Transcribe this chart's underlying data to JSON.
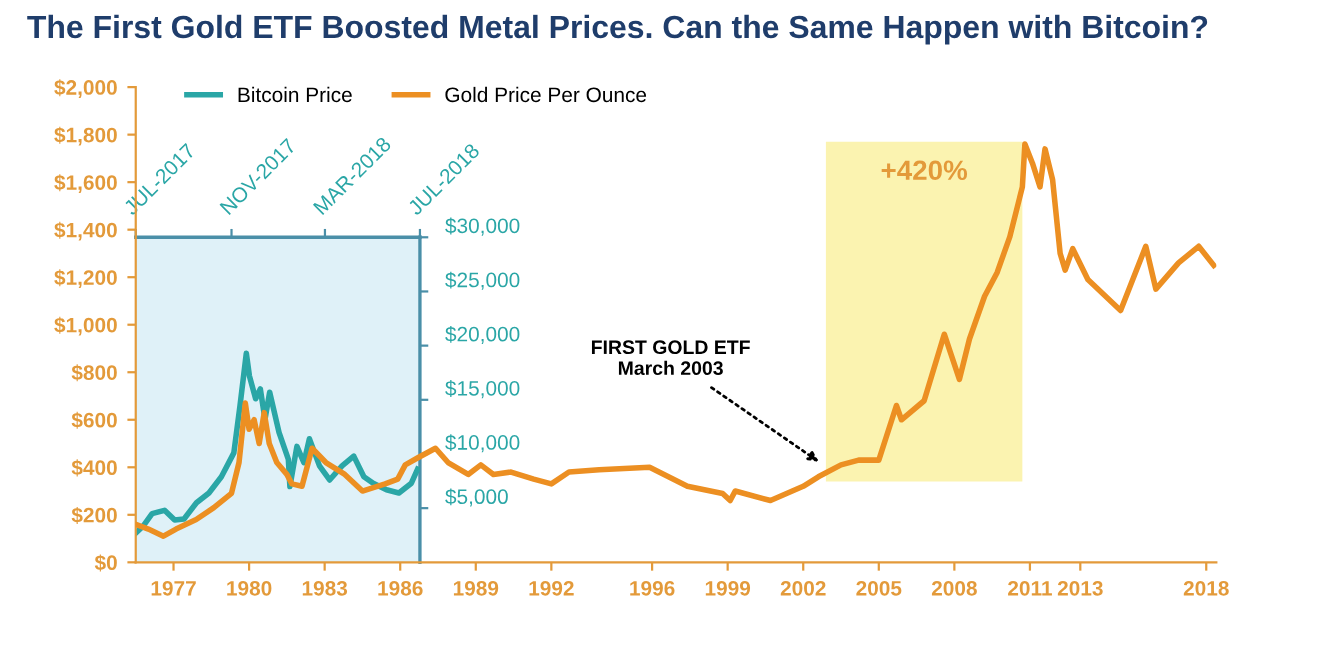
{
  "chart_data": [
    {
      "type": "line",
      "title": "The First Gold ETF Boosted Metal Prices. Can the Same Happen with Bitcoin?",
      "xlim": [
        1975.5,
        2018.4
      ],
      "xticks": [
        1977,
        1980,
        1983,
        1986,
        1989,
        1992,
        1996,
        1999,
        2002,
        2005,
        2008,
        2011,
        2013,
        2018
      ],
      "ylim": [
        0,
        2000
      ],
      "yticks": [
        {
          "value": 0,
          "label": "$0"
        },
        {
          "value": 200,
          "label": "$200"
        },
        {
          "value": 400,
          "label": "$400"
        },
        {
          "value": 600,
          "label": "$600"
        },
        {
          "value": 800,
          "label": "$800"
        },
        {
          "value": 1000,
          "label": "$1,000"
        },
        {
          "value": 1200,
          "label": "$1,200"
        },
        {
          "value": 1400,
          "label": "$1,400"
        },
        {
          "value": 1600,
          "label": "$1,600"
        },
        {
          "value": 1800,
          "label": "$1,800"
        },
        {
          "value": 2000,
          "label": "$2,000"
        }
      ],
      "series": [
        {
          "name": "Gold Price Per Ounce",
          "color": "#ec8f22",
          "x": [
            1975.5,
            1976.0,
            1976.6,
            1977.1,
            1977.9,
            1978.6,
            1979.3,
            1979.6,
            1979.85,
            1980.0,
            1980.2,
            1980.4,
            1980.6,
            1980.8,
            1981.1,
            1981.5,
            1981.7,
            1982.1,
            1982.5,
            1983.05,
            1983.8,
            1984.5,
            1985.4,
            1985.9,
            1986.2,
            1986.7,
            1987.4,
            1987.9,
            1988.7,
            1989.2,
            1989.7,
            1990.4,
            1991.3,
            1992.0,
            1992.7,
            1993.9,
            1995.9,
            1997.4,
            1998.8,
            1999.1,
            1999.3,
            2000.7,
            2002.0,
            2002.6,
            2003.5,
            2004.2,
            2005.0,
            2005.7,
            2005.9,
            2006.8,
            2007.6,
            2008.2,
            2008.6,
            2009.2,
            2009.7,
            2010.2,
            2010.7,
            2010.8,
            2011.1,
            2011.4,
            2011.6,
            2011.9,
            2012.2,
            2012.4,
            2012.7,
            2013.3,
            2014.6,
            2015.6,
            2016.0,
            2016.9,
            2017.7,
            2018.3
          ],
          "values": [
            160,
            140,
            110,
            140,
            180,
            230,
            290,
            420,
            670,
            560,
            600,
            500,
            630,
            500,
            420,
            370,
            330,
            320,
            480,
            420,
            370,
            300,
            330,
            350,
            410,
            440,
            480,
            420,
            370,
            410,
            370,
            380,
            350,
            330,
            380,
            390,
            400,
            320,
            290,
            260,
            300,
            260,
            320,
            360,
            410,
            430,
            430,
            660,
            600,
            680,
            960,
            770,
            940,
            1120,
            1220,
            1370,
            1580,
            1760,
            1680,
            1580,
            1740,
            1610,
            1300,
            1230,
            1320,
            1190,
            1060,
            1330,
            1150,
            1260,
            1330,
            1250
          ]
        }
      ],
      "bands": [
        {
          "axis": "x",
          "from": 2002.9,
          "to": 2010.7,
          "label": "+420%",
          "color": "#fbf3b0"
        }
      ],
      "annotations": [
        {
          "text": "FIRST GOLD ETF\nMarch 2003",
          "x": 2002.8,
          "y": 410
        }
      ],
      "legend": "top left"
    },
    {
      "type": "line",
      "xlim": [
        "2017-07-01",
        "2018-07-01"
      ],
      "xticks": [
        {
          "value": "2017-07-01",
          "label": "JUL-2017"
        },
        {
          "value": "2017-11-01",
          "label": "NOV-2017"
        },
        {
          "value": "2018-03-01",
          "label": "MAR-2018"
        },
        {
          "value": "2018-07-01",
          "label": "JUL-2018"
        }
      ],
      "ylim": [
        0,
        30000
      ],
      "yticks": [
        {
          "value": 5000,
          "label": "$5,000"
        },
        {
          "value": 10000,
          "label": "$10,000"
        },
        {
          "value": 15000,
          "label": "$15,000"
        },
        {
          "value": 20000,
          "label": "$20,000"
        },
        {
          "value": 25000,
          "label": "$25,000"
        },
        {
          "value": 30000,
          "label": "$30,000"
        }
      ],
      "series": [
        {
          "name": "Bitcoin Price",
          "color": "#2aa6a6",
          "x": [
            "2017-07-01",
            "2017-07-10",
            "2017-07-22",
            "2017-08-07",
            "2017-08-20",
            "2017-09-01",
            "2017-09-17",
            "2017-10-03",
            "2017-10-19",
            "2017-11-04",
            "2017-11-12",
            "2017-11-20",
            "2017-11-24",
            "2017-12-02",
            "2017-12-08",
            "2017-12-14",
            "2017-12-20",
            "2018-01-01",
            "2018-01-13",
            "2018-01-15",
            "2018-01-24",
            "2018-02-02",
            "2018-02-09",
            "2018-02-22",
            "2018-03-07",
            "2018-03-23",
            "2018-04-07",
            "2018-04-20",
            "2018-05-02",
            "2018-05-19",
            "2018-06-04",
            "2018-06-20",
            "2018-06-28"
          ],
          "values": [
            2700,
            3300,
            4500,
            4800,
            3900,
            4000,
            5500,
            6400,
            7900,
            10100,
            14500,
            19300,
            17200,
            15100,
            16000,
            13200,
            15700,
            12000,
            9500,
            7000,
            10700,
            9200,
            11400,
            8900,
            7600,
            8900,
            9800,
            7900,
            7300,
            6700,
            6400,
            7300,
            8600
          ]
        }
      ]
    }
  ]
}
